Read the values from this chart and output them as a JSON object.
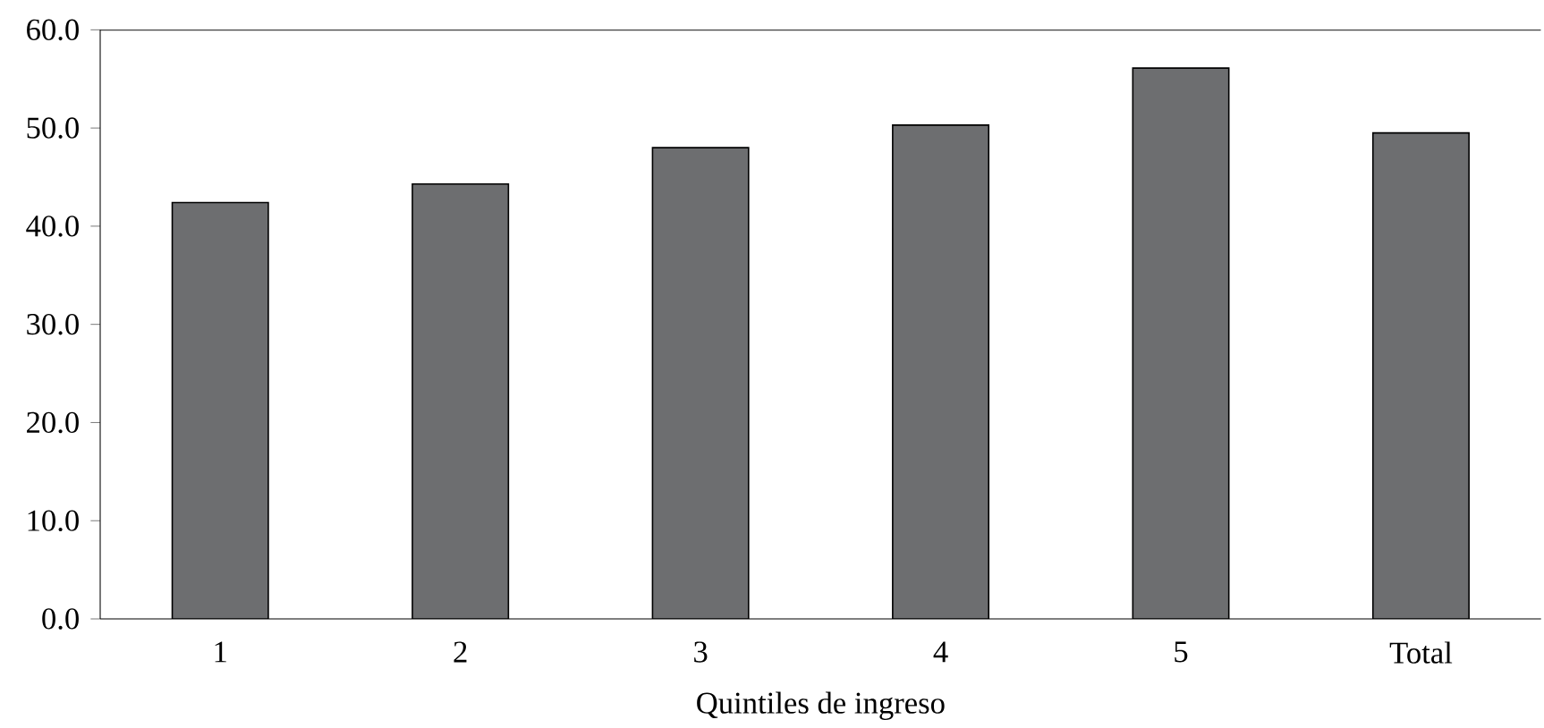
{
  "chart_data": {
    "type": "bar",
    "xlabel": "Quintiles de ingreso",
    "categories": [
      "1",
      "2",
      "3",
      "4",
      "5",
      "Total"
    ],
    "values": [
      42.4,
      44.3,
      48.0,
      50.3,
      56.1,
      49.5
    ],
    "color": "#6d6e70",
    "ylim": [
      0,
      60
    ],
    "yticks": [
      {
        "value": 0,
        "label": "0.0"
      },
      {
        "value": 10,
        "label": "10.0"
      },
      {
        "value": 20,
        "label": "20.0"
      },
      {
        "value": 30,
        "label": "30.0"
      },
      {
        "value": 40,
        "label": "40.0"
      },
      {
        "value": 50,
        "label": "50.0"
      },
      {
        "value": 60,
        "label": "60.0"
      }
    ],
    "grid": false
  }
}
